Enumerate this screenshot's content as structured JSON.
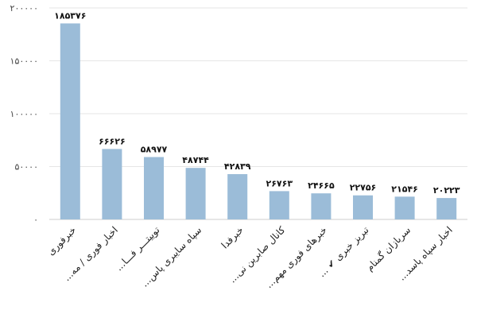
{
  "chart_data": {
    "type": "bar",
    "categories": [
      "خبرفوری",
      "...اخبار فوری / مه",
      "...توییتـــر فـــا",
      "...سپاه سایبری پاس",
      "خبرفدا",
      "...کانال صابرین نی",
      "...خبرهای فوری مهم",
      "... ✔ تبریز خبری",
      "سربازان گمنام",
      "...اخبار سپاه پاسد"
    ],
    "values": [
      185376,
      66626,
      58977,
      48744,
      42839,
      26763,
      24665,
      22756,
      21546,
      20223
    ],
    "data_labels": [
      "۱۸۵۳۷۶",
      "۶۶۶۲۶",
      "۵۸۹۷۷",
      "۴۸۷۴۴",
      "۴۲۸۳۹",
      "۲۶۷۶۳",
      "۲۴۶۶۵",
      "۲۲۷۵۶",
      "۲۱۵۴۶",
      "۲۰۲۲۳"
    ],
    "y_ticks": [
      {
        "value": 0,
        "label": "۰"
      },
      {
        "value": 50000,
        "label": "۵۰۰۰۰"
      },
      {
        "value": 100000,
        "label": "۱۰۰۰۰۰"
      },
      {
        "value": 150000,
        "label": "۱۵۰۰۰۰"
      },
      {
        "value": 200000,
        "label": "۲۰۰۰۰۰"
      }
    ],
    "ylim": [
      0,
      200000
    ],
    "title": "",
    "xlabel": "",
    "ylabel": "",
    "grid": true,
    "legend": "none",
    "bar_color": "#9bbcd8"
  }
}
